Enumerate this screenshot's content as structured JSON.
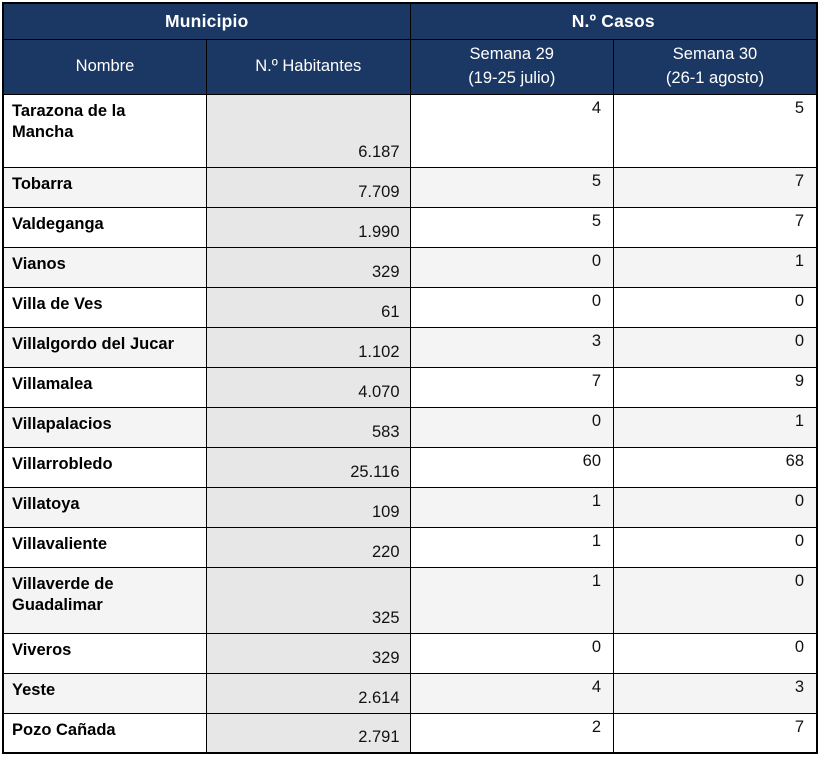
{
  "table": {
    "header_groups": [
      {
        "label": "Municipio"
      },
      {
        "label": "N.º Casos"
      }
    ],
    "columns": [
      {
        "label": "Nombre"
      },
      {
        "label": "N.º Habitantes"
      },
      {
        "label": "Semana 29\n(19-25 julio)"
      },
      {
        "label": "Semana 30\n(26-1 agosto)"
      }
    ],
    "rows": [
      {
        "name": "Tarazona de la\nMancha",
        "habitantes": "6.187",
        "semana29": "4",
        "semana30": "5"
      },
      {
        "name": "Tobarra",
        "habitantes": "7.709",
        "semana29": "5",
        "semana30": "7"
      },
      {
        "name": "Valdeganga",
        "habitantes": "1.990",
        "semana29": "5",
        "semana30": "7"
      },
      {
        "name": "Vianos",
        "habitantes": "329",
        "semana29": "0",
        "semana30": "1"
      },
      {
        "name": "Villa de Ves",
        "habitantes": "61",
        "semana29": "0",
        "semana30": "0"
      },
      {
        "name": "Villalgordo del Jucar",
        "habitantes": "1.102",
        "semana29": "3",
        "semana30": "0"
      },
      {
        "name": "Villamalea",
        "habitantes": "4.070",
        "semana29": "7",
        "semana30": "9"
      },
      {
        "name": "Villapalacios",
        "habitantes": "583",
        "semana29": "0",
        "semana30": "1"
      },
      {
        "name": "Villarrobledo",
        "habitantes": "25.116",
        "semana29": "60",
        "semana30": "68"
      },
      {
        "name": "Villatoya",
        "habitantes": "109",
        "semana29": "1",
        "semana30": "0"
      },
      {
        "name": "Villavaliente",
        "habitantes": "220",
        "semana29": "1",
        "semana30": "0"
      },
      {
        "name": "Villaverde de\nGuadalimar",
        "habitantes": "325",
        "semana29": "1",
        "semana30": "0"
      },
      {
        "name": "Viveros",
        "habitantes": "329",
        "semana29": "0",
        "semana30": "0"
      },
      {
        "name": "Yeste",
        "habitantes": "2.614",
        "semana29": "4",
        "semana30": "3"
      },
      {
        "name": "Pozo Cañada",
        "habitantes": "2.791",
        "semana29": "2",
        "semana30": "7"
      }
    ]
  }
}
